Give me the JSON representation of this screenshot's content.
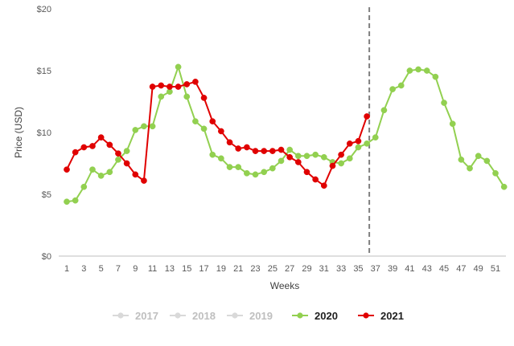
{
  "chart_data": {
    "type": "line",
    "title": "",
    "xlabel": "Weeks",
    "ylabel": "Price (USD)",
    "ylim": [
      0,
      20
    ],
    "xlim": [
      1,
      52
    ],
    "y_ticks": [
      0,
      5,
      10,
      15,
      20
    ],
    "y_tick_labels": [
      "$0",
      "$5",
      "$10",
      "$15",
      "$20"
    ],
    "x_ticks": [
      1,
      3,
      5,
      7,
      9,
      11,
      13,
      15,
      17,
      19,
      21,
      23,
      25,
      27,
      29,
      31,
      33,
      35,
      37,
      39,
      41,
      43,
      45,
      47,
      49,
      51
    ],
    "grid": false,
    "vertical_marker": {
      "x": 36,
      "style": "dashed",
      "color": "#7f7f7f"
    },
    "legend": {
      "placement": "bottom-center",
      "entries": [
        {
          "name": "2017",
          "color": "#d9d9d9",
          "active": false
        },
        {
          "name": "2018",
          "color": "#d9d9d9",
          "active": false
        },
        {
          "name": "2019",
          "color": "#d9d9d9",
          "active": false
        },
        {
          "name": "2020",
          "color": "#92d050",
          "active": true
        },
        {
          "name": "2021",
          "color": "#e00000",
          "active": true
        }
      ]
    },
    "series": [
      {
        "name": "2020",
        "color": "#92d050",
        "x": [
          1,
          2,
          3,
          4,
          5,
          6,
          7,
          8,
          9,
          10,
          11,
          12,
          13,
          14,
          15,
          16,
          17,
          18,
          19,
          20,
          21,
          22,
          23,
          24,
          25,
          26,
          27,
          28,
          29,
          30,
          31,
          32,
          33,
          34,
          35,
          36,
          37,
          38,
          39,
          40,
          41,
          42,
          43,
          44,
          45,
          46,
          47,
          48,
          49,
          50,
          51,
          52
        ],
        "values": [
          4.4,
          4.5,
          5.6,
          7.0,
          6.5,
          6.8,
          7.8,
          8.5,
          10.2,
          10.5,
          10.5,
          12.9,
          13.3,
          15.3,
          12.9,
          10.9,
          10.3,
          8.2,
          7.9,
          7.2,
          7.2,
          6.7,
          6.6,
          6.8,
          7.1,
          7.7,
          8.6,
          8.1,
          8.1,
          8.2,
          8.0,
          7.6,
          7.5,
          7.9,
          8.8,
          9.1,
          9.6,
          11.8,
          13.5,
          13.8,
          15.0,
          15.1,
          15.0,
          14.5,
          12.4,
          10.7,
          7.8,
          7.1,
          8.1,
          7.7,
          6.7,
          5.6
        ]
      },
      {
        "name": "2021",
        "color": "#e00000",
        "x": [
          1,
          2,
          3,
          4,
          5,
          6,
          7,
          8,
          9,
          10,
          11,
          12,
          13,
          14,
          15,
          16,
          17,
          18,
          19,
          20,
          21,
          22,
          23,
          24,
          25,
          26,
          27,
          28,
          29,
          30,
          31,
          32,
          33,
          34,
          35,
          36
        ],
        "values": [
          7.0,
          8.4,
          8.8,
          8.9,
          9.6,
          9.0,
          8.3,
          7.5,
          6.6,
          6.1,
          13.7,
          13.8,
          13.7,
          13.7,
          13.9,
          14.1,
          12.8,
          10.9,
          10.1,
          9.2,
          8.7,
          8.8,
          8.5,
          8.5,
          8.5,
          8.6,
          8.0,
          7.6,
          6.8,
          6.2,
          5.7,
          7.3,
          8.2,
          9.1,
          9.3,
          11.3
        ]
      }
    ]
  }
}
